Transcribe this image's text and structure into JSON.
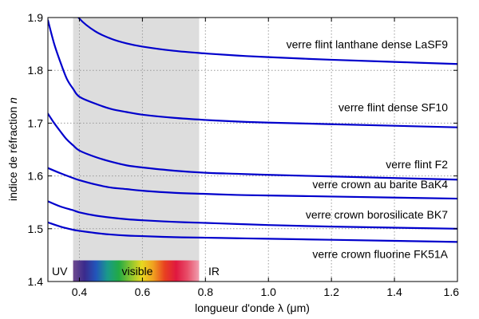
{
  "chart_data": {
    "type": "line",
    "xlabel": "longueur d'onde λ (μm)",
    "ylabel_prefix": "indice de réfraction ",
    "ylabel_var": "n",
    "xlim": [
      0.3,
      1.6
    ],
    "ylim": [
      1.4,
      1.9
    ],
    "xticks": [
      0.4,
      0.6,
      0.8,
      1.0,
      1.2,
      1.4,
      1.6
    ],
    "xtick_labels": [
      "0.4",
      "0.6",
      "0.8",
      "1.0",
      "1.2",
      "1.4",
      "1.6"
    ],
    "yticks": [
      1.4,
      1.5,
      1.6,
      1.7,
      1.8,
      1.9
    ],
    "ytick_labels": [
      "1.4",
      "1.5",
      "1.6",
      "1.7",
      "1.8",
      "1.9"
    ],
    "grid": true,
    "line_color": "#0000cc",
    "shaded_region": {
      "x": [
        0.38,
        0.78
      ],
      "color": "#dddddd"
    },
    "spectrum_band": {
      "x": [
        0.38,
        0.78
      ],
      "y": [
        1.4,
        1.44
      ],
      "colors": [
        "#6f4a8e",
        "#3a2a8c",
        "#2255bb",
        "#1a9a8a",
        "#22aa44",
        "#88c530",
        "#e8d820",
        "#f0a020",
        "#e84020",
        "#e01840",
        "#e8506a",
        "#f0a0b0"
      ]
    },
    "annotations": {
      "uv": "UV",
      "visible": "visible",
      "ir": "IR"
    },
    "series": [
      {
        "name": "verre flint lanthane dense LaSF9",
        "x": [
          0.3,
          0.35,
          0.4,
          0.45,
          0.5,
          0.55,
          0.6,
          0.7,
          0.8,
          0.9,
          1.0,
          1.2,
          1.4,
          1.6
        ],
        "values": [
          1.98,
          1.94,
          1.898,
          1.874,
          1.86,
          1.851,
          1.845,
          1.837,
          1.832,
          1.828,
          1.825,
          1.82,
          1.816,
          1.812
        ]
      },
      {
        "name": "verre flint dense SF10",
        "x": [
          0.3,
          0.32,
          0.34,
          0.36,
          0.38,
          0.4,
          0.45,
          0.5,
          0.55,
          0.6,
          0.7,
          0.8,
          0.9,
          1.0,
          1.2,
          1.4,
          1.6
        ],
        "values": [
          1.895,
          1.85,
          1.815,
          1.784,
          1.765,
          1.75,
          1.737,
          1.727,
          1.721,
          1.716,
          1.71,
          1.706,
          1.703,
          1.701,
          1.698,
          1.695,
          1.692
        ]
      },
      {
        "name": "verre flint F2",
        "x": [
          0.3,
          0.32,
          0.34,
          0.36,
          0.38,
          0.4,
          0.45,
          0.5,
          0.55,
          0.6,
          0.7,
          0.8,
          0.9,
          1.0,
          1.2,
          1.4,
          1.6
        ],
        "values": [
          1.718,
          1.7,
          1.684,
          1.669,
          1.658,
          1.648,
          1.636,
          1.627,
          1.62,
          1.616,
          1.61,
          1.606,
          1.604,
          1.602,
          1.599,
          1.596,
          1.593
        ]
      },
      {
        "name": "verre crown au barite BaK4",
        "x": [
          0.3,
          0.34,
          0.38,
          0.4,
          0.45,
          0.5,
          0.55,
          0.6,
          0.7,
          0.8,
          0.9,
          1.0,
          1.2,
          1.4,
          1.6
        ],
        "values": [
          1.615,
          1.605,
          1.596,
          1.592,
          1.584,
          1.578,
          1.575,
          1.572,
          1.568,
          1.566,
          1.564,
          1.563,
          1.561,
          1.559,
          1.557
        ]
      },
      {
        "name": "verre crown borosilicate BK7",
        "x": [
          0.3,
          0.34,
          0.38,
          0.4,
          0.45,
          0.5,
          0.55,
          0.6,
          0.7,
          0.8,
          0.9,
          1.0,
          1.2,
          1.4,
          1.6
        ],
        "values": [
          1.552,
          1.542,
          1.535,
          1.531,
          1.525,
          1.521,
          1.518,
          1.516,
          1.513,
          1.511,
          1.509,
          1.507,
          1.504,
          1.502,
          1.5
        ]
      },
      {
        "name": "verre crown fluorine FK51A",
        "x": [
          0.3,
          0.34,
          0.38,
          0.4,
          0.45,
          0.5,
          0.55,
          0.6,
          0.7,
          0.8,
          0.9,
          1.0,
          1.2,
          1.4,
          1.6
        ],
        "values": [
          1.512,
          1.504,
          1.498,
          1.496,
          1.492,
          1.489,
          1.487,
          1.486,
          1.484,
          1.483,
          1.482,
          1.481,
          1.479,
          1.477,
          1.475
        ]
      }
    ]
  }
}
